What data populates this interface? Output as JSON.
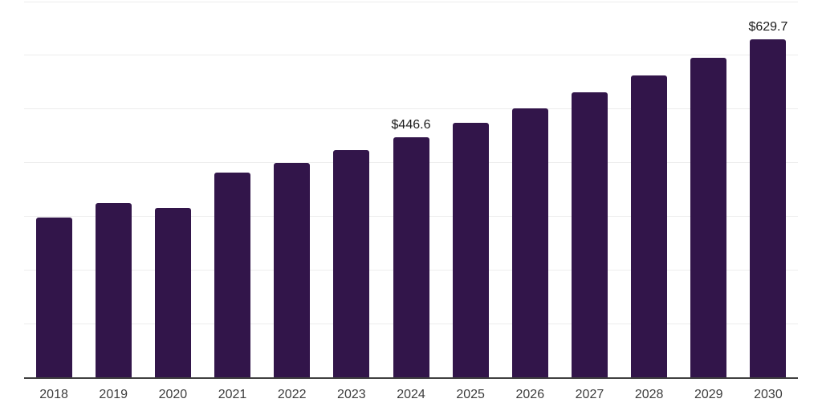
{
  "chart_data": {
    "type": "bar",
    "title": "",
    "xlabel": "",
    "ylabel": "",
    "categories": [
      "2018",
      "2019",
      "2020",
      "2021",
      "2022",
      "2023",
      "2024",
      "2025",
      "2026",
      "2027",
      "2028",
      "2029",
      "2030"
    ],
    "values": [
      297.8,
      323.9,
      315.7,
      380.3,
      399.2,
      422.4,
      446.6,
      473.4,
      500.7,
      530.0,
      562.0,
      594.5,
      629.7
    ],
    "data_labels": {
      "2024": "$446.6",
      "2030": "$629.7"
    },
    "ylim": [
      0,
      700
    ],
    "y_gridline_step": 100,
    "grid": "horizontal",
    "legend": "none",
    "colors": {
      "bar": "#32154a",
      "gridline": "#ededed",
      "axis": "#3f3f3f",
      "tick_label": "#3d3d3d",
      "value_label": "#1a1a1a",
      "background": "#ffffff"
    }
  }
}
